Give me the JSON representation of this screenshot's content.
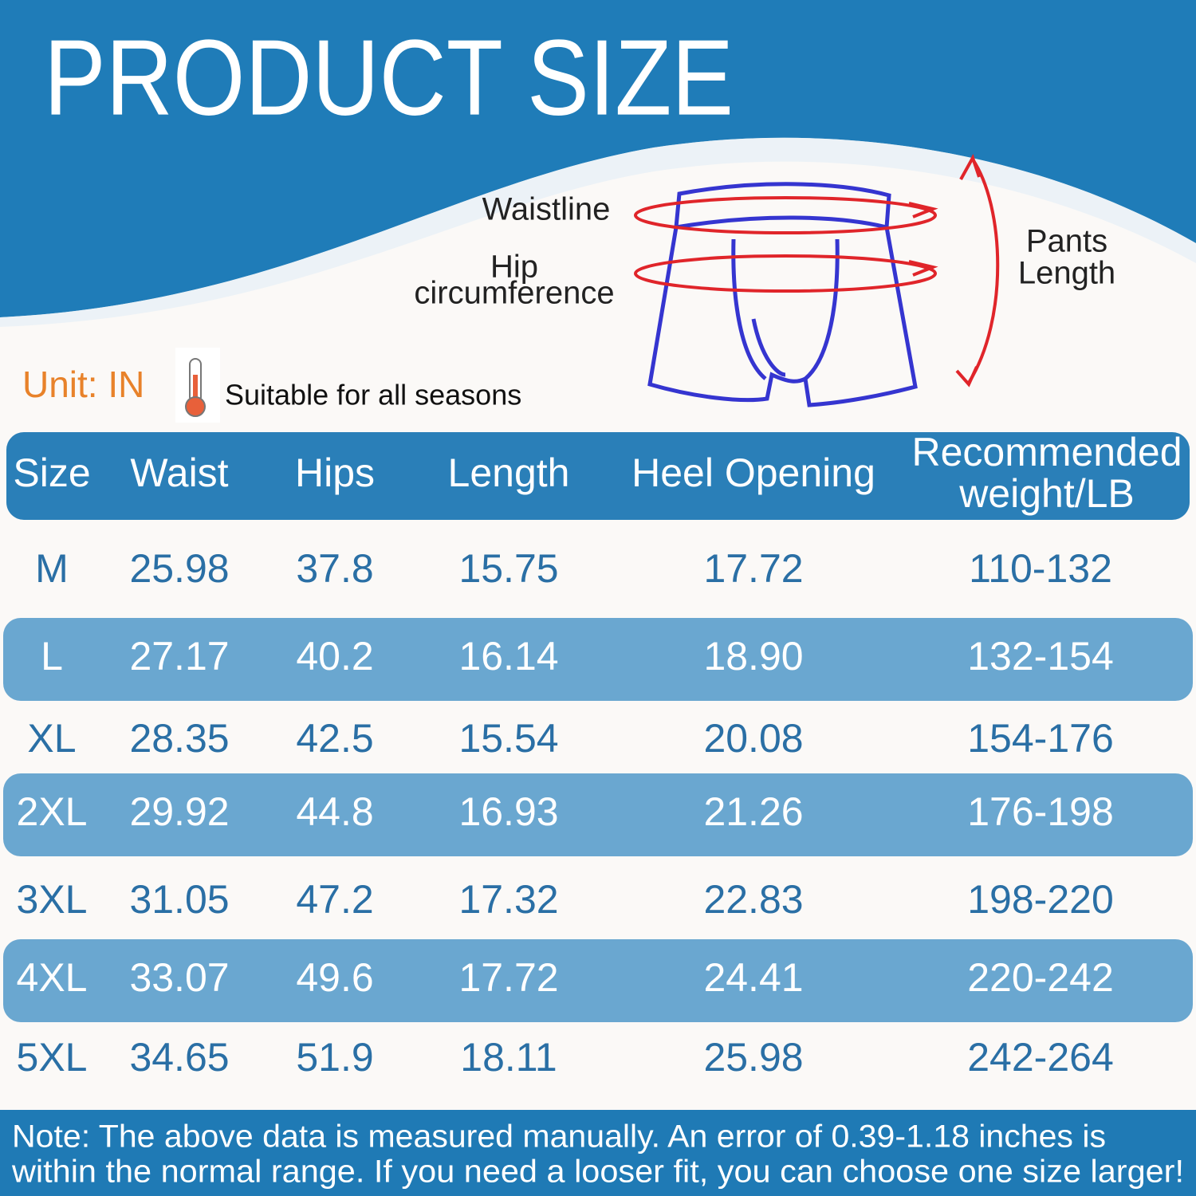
{
  "header": {
    "title": "PRODUCT SIZE"
  },
  "diagram": {
    "waistline": "Waistline",
    "hip": [
      "Hip",
      "circumference"
    ],
    "pants_length": [
      "Pants",
      "Length"
    ]
  },
  "unit": "Unit: IN",
  "season": "Suitable for all seasons",
  "table": {
    "header": [
      [
        "Size"
      ],
      [
        "Waist"
      ],
      [
        "Hips"
      ],
      [
        "Length"
      ],
      [
        "Heel Opening"
      ],
      [
        "Recommended",
        "weight/LB"
      ]
    ],
    "rows": [
      [
        "M",
        "25.98",
        "37.8",
        "15.75",
        "17.72",
        "110-132"
      ],
      [
        "L",
        "27.17",
        "40.2",
        "16.14",
        "18.90",
        "132-154"
      ],
      [
        "XL",
        "28.35",
        "42.5",
        "15.54",
        "20.08",
        "154-176"
      ],
      [
        "2XL",
        "29.92",
        "44.8",
        "16.93",
        "21.26",
        "176-198"
      ],
      [
        "3XL",
        "31.05",
        "47.2",
        "17.32",
        "22.83",
        "198-220"
      ],
      [
        "4XL",
        "33.07",
        "49.6",
        "17.72",
        "24.41",
        "220-242"
      ],
      [
        "5XL",
        "34.65",
        "51.9",
        "18.11",
        "25.98",
        "242-264"
      ]
    ]
  },
  "note": [
    "Note: The above data is measured manually. An error of 0.39-1.18 inches is",
    "within the normal range. If you need a looser fit, you can choose one size larger!"
  ]
}
